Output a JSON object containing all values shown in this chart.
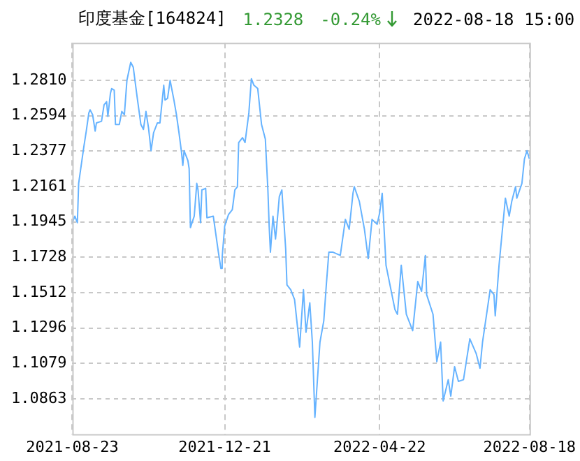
{
  "chart_data": {
    "type": "line",
    "title": "印度基金[164824]",
    "annotations": [
      "1.2328",
      "-0.24%",
      "2022-08-18 15:00"
    ],
    "x": [
      "2021-08-23",
      "2021-08-25",
      "2021-08-27",
      "2021-08-28",
      "2021-09-01",
      "2021-09-03",
      "2021-09-05",
      "2021-09-06",
      "2021-09-08",
      "2021-09-10",
      "2021-09-11",
      "2021-09-15",
      "2021-09-17",
      "2021-09-19",
      "2021-09-20",
      "2021-09-22",
      "2021-09-23",
      "2021-09-25",
      "2021-09-26",
      "2021-09-29",
      "2021-10-01",
      "2021-10-03",
      "2021-10-05",
      "2021-10-08",
      "2021-10-10",
      "2021-10-13",
      "2021-10-16",
      "2021-10-18",
      "2021-10-20",
      "2021-10-22",
      "2021-10-24",
      "2021-10-26",
      "2021-10-29",
      "2021-10-31",
      "2021-11-03",
      "2021-11-04",
      "2021-11-06",
      "2021-11-08",
      "2021-11-11",
      "2021-11-13",
      "2021-11-15",
      "2021-11-17",
      "2021-11-18",
      "2021-11-19",
      "2021-11-21",
      "2021-11-22",
      "2021-11-23",
      "2021-11-24",
      "2021-11-27",
      "2021-11-29",
      "2021-11-30",
      "2021-12-02",
      "2021-12-03",
      "2021-12-06",
      "2021-12-07",
      "2021-12-12",
      "2021-12-14",
      "2021-12-16",
      "2021-12-18",
      "2021-12-19",
      "2021-12-21",
      "2021-12-24",
      "2021-12-27",
      "2021-12-29",
      "2021-12-31",
      "2022-01-01",
      "2022-01-04",
      "2022-01-06",
      "2022-01-09",
      "2022-01-11",
      "2022-01-13",
      "2022-01-16",
      "2022-01-19",
      "2022-01-22",
      "2022-01-24",
      "2022-01-25",
      "2022-01-26",
      "2022-01-28",
      "2022-01-30",
      "2022-01-31",
      "2022-02-02",
      "2022-02-04",
      "2022-02-07",
      "2022-02-08",
      "2022-02-11",
      "2022-02-14",
      "2022-02-18",
      "2022-02-21",
      "2022-02-23",
      "2022-02-26",
      "2022-02-28",
      "2022-03-02",
      "2022-03-06",
      "2022-03-09",
      "2022-03-11",
      "2022-03-13",
      "2022-03-16",
      "2022-03-22",
      "2022-03-26",
      "2022-03-29",
      "2022-04-01",
      "2022-04-02",
      "2022-04-06",
      "2022-04-10",
      "2022-04-13",
      "2022-04-16",
      "2022-04-20",
      "2022-04-22",
      "2022-04-24",
      "2022-04-27",
      "2022-05-04",
      "2022-05-06",
      "2022-05-09",
      "2022-05-13",
      "2022-05-18",
      "2022-05-22",
      "2022-05-25",
      "2022-05-28",
      "2022-05-29",
      "2022-06-03",
      "2022-06-06",
      "2022-06-09",
      "2022-06-11",
      "2022-06-15",
      "2022-06-17",
      "2022-06-20",
      "2022-06-23",
      "2022-06-27",
      "2022-07-02",
      "2022-07-07",
      "2022-07-10",
      "2022-07-12",
      "2022-07-15",
      "2022-07-18",
      "2022-07-21",
      "2022-07-22",
      "2022-07-25",
      "2022-07-30",
      "2022-08-02",
      "2022-08-04",
      "2022-08-07",
      "2022-08-08",
      "2022-08-12",
      "2022-08-14",
      "2022-08-16",
      "2022-08-18"
    ],
    "series": [
      {
        "color": "#66b3ff",
        "values": [
          1.194,
          1.198,
          1.194,
          1.218,
          1.24,
          1.25,
          1.261,
          1.263,
          1.26,
          1.25,
          1.255,
          1.256,
          1.266,
          1.268,
          1.259,
          1.273,
          1.276,
          1.275,
          1.254,
          1.254,
          1.262,
          1.26,
          1.281,
          1.292,
          1.289,
          1.271,
          1.254,
          1.251,
          1.262,
          1.252,
          1.238,
          1.249,
          1.255,
          1.255,
          1.278,
          1.269,
          1.27,
          1.281,
          1.269,
          1.26,
          1.249,
          1.237,
          1.229,
          1.238,
          1.234,
          1.232,
          1.227,
          1.191,
          1.198,
          1.218,
          1.214,
          1.194,
          1.214,
          1.215,
          1.197,
          1.198,
          1.187,
          1.176,
          1.166,
          1.173,
          1.192,
          1.199,
          1.202,
          1.214,
          1.216,
          1.243,
          1.246,
          1.243,
          1.261,
          1.282,
          1.278,
          1.276,
          1.254,
          1.245,
          1.214,
          1.192,
          1.176,
          1.198,
          1.184,
          1.192,
          1.21,
          1.214,
          1.178,
          1.156,
          1.153,
          1.147,
          1.118,
          1.153,
          1.127,
          1.145,
          1.121,
          1.075,
          1.121,
          1.134,
          1.156,
          1.176,
          1.176,
          1.174,
          1.196,
          1.19,
          1.212,
          1.216,
          1.207,
          1.19,
          1.172,
          1.196,
          1.193,
          1.2,
          1.212,
          1.168,
          1.141,
          1.138,
          1.168,
          1.138,
          1.128,
          1.158,
          1.152,
          1.174,
          1.15,
          1.138,
          1.109,
          1.121,
          1.085,
          1.098,
          1.088,
          1.106,
          1.097,
          1.098,
          1.123,
          1.114,
          1.105,
          1.121,
          1.137,
          1.153,
          1.15,
          1.137,
          1.168,
          1.209,
          1.198,
          1.207,
          1.216,
          1.209,
          1.218,
          1.233,
          1.238,
          1.2328
        ]
      }
    ],
    "xlim": [
      "2021-08-23",
      "2022-08-18"
    ],
    "xticks": [
      "2021-08-23",
      "2021-12-21",
      "2022-04-22",
      "2022-08-18"
    ],
    "ylim": [
      1.0647,
      1.304
    ],
    "yticks": [
      1.0863,
      1.1079,
      1.1296,
      1.1512,
      1.1728,
      1.1945,
      1.2161,
      1.2377,
      1.2594,
      {
        "value": 1.281,
        "label": "1.2810"
      }
    ],
    "grid": true,
    "legend": false,
    "marker": "none",
    "line_style": "solid"
  }
}
